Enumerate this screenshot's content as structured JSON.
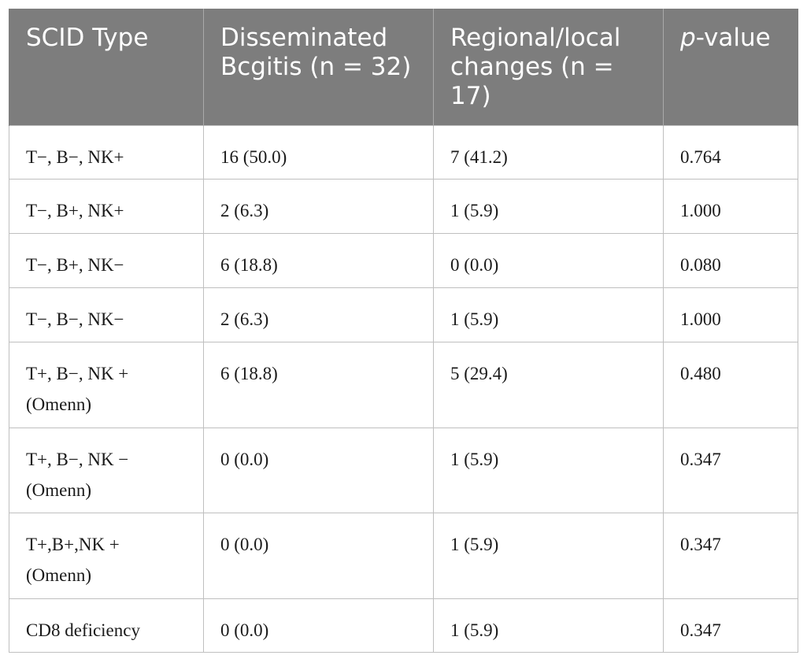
{
  "header": {
    "col1": "SCID Type",
    "col2": "Disseminated Bcgitis (n = 32)",
    "col3": "Regional/local changes (n = 17)",
    "col4_italic": "p",
    "col4_rest": "-value"
  },
  "rows": [
    {
      "type": "T−, B−, NK+",
      "disseminated": "16 (50.0)",
      "regional": "7 (41.2)",
      "p": "0.764"
    },
    {
      "type": "T−, B+, NK+",
      "disseminated": "2 (6.3)",
      "regional": "1 (5.9)",
      "p": "1.000"
    },
    {
      "type": "T−, B+, NK−",
      "disseminated": "6 (18.8)",
      "regional": "0 (0.0)",
      "p": "0.080"
    },
    {
      "type": "T−, B−, NK−",
      "disseminated": "2 (6.3)",
      "regional": "1 (5.9)",
      "p": "1.000"
    },
    {
      "type": "T+, B−, NK + (Omenn)",
      "disseminated": "6 (18.8)",
      "regional": "5 (29.4)",
      "p": "0.480"
    },
    {
      "type": "T+, B−, NK − (Omenn)",
      "disseminated": "0 (0.0)",
      "regional": "1 (5.9)",
      "p": "0.347"
    },
    {
      "type": "T+,B+,NK + (Omenn)",
      "disseminated": "0 (0.0)",
      "regional": "1 (5.9)",
      "p": "0.347"
    },
    {
      "type": "CD8 deficiency",
      "disseminated": "0 (0.0)",
      "regional": "1 (5.9)",
      "p": "0.347"
    }
  ]
}
